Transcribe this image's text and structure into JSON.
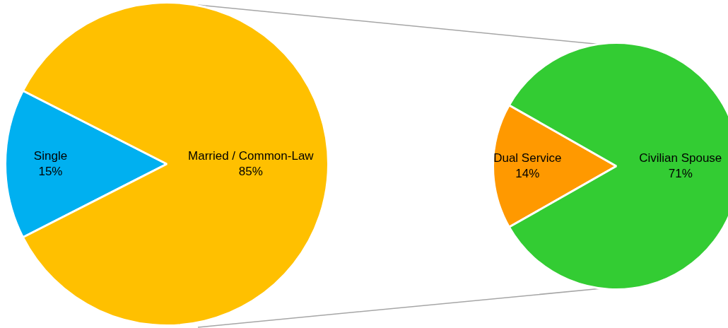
{
  "chart_data": [
    {
      "type": "pie",
      "categories": [
        "Single",
        "Married / Common-Law"
      ],
      "values": [
        15,
        85
      ],
      "colors": [
        "#00b0f0",
        "#ffc000"
      ],
      "value_labels": [
        "15%",
        "85%"
      ]
    },
    {
      "type": "pie",
      "categories": [
        "Dual Service",
        "Civilian Spouse"
      ],
      "values": [
        14,
        71
      ],
      "colors": [
        "#ff9900",
        "#33cc33"
      ],
      "value_labels": [
        "14%",
        "71%"
      ]
    }
  ]
}
